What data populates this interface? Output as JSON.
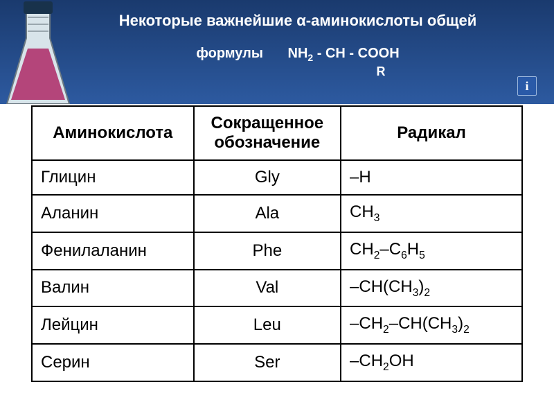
{
  "header": {
    "title": "Некоторые важнейшие α-аминокислоты общей",
    "formula_label": "формулы",
    "formula_html": "NH<sub>2</sub> - CH - COOH",
    "r_label": "R",
    "bg_color_top": "#1a3a6e",
    "bg_color_bottom": "#2d5aa0",
    "info_icon": "i"
  },
  "flask": {
    "glass_color": "#d8e4ea",
    "liquid_color": "#b4457a",
    "cap_color": "#18324b"
  },
  "table": {
    "columns": [
      "Аминокислота",
      "Сокращенное обозначение",
      "Радикал"
    ],
    "rows": [
      {
        "name": "Глицин",
        "abbr": "Gly",
        "radical_html": "–H"
      },
      {
        "name": "Аланин",
        "abbr": "Ala",
        "radical_html": "CH<span class='sub'>3</span>"
      },
      {
        "name": "Фенилаланин",
        "abbr": "Phe",
        "radical_html": "CH<span class='sub'>2</span>–C<span class='sub'>6</span>H<span class='sub'>5</span>"
      },
      {
        "name": "Валин",
        "abbr": "Val",
        "radical_html": "–CH(CH<span class='sub'>3</span>)<span class='sub'>2</span>"
      },
      {
        "name": "Лейцин",
        "abbr": "Leu",
        "radical_html": "–CH<span class='sub'>2</span>–CH(CH<span class='sub'>3</span>)<span class='sub'>2</span>"
      },
      {
        "name": "Серин",
        "abbr": "Ser",
        "radical_html": "–CH<span class='sub'>2</span>OH"
      }
    ],
    "border_color": "#000000",
    "bg_color": "#ffffff",
    "font_size": 24
  }
}
